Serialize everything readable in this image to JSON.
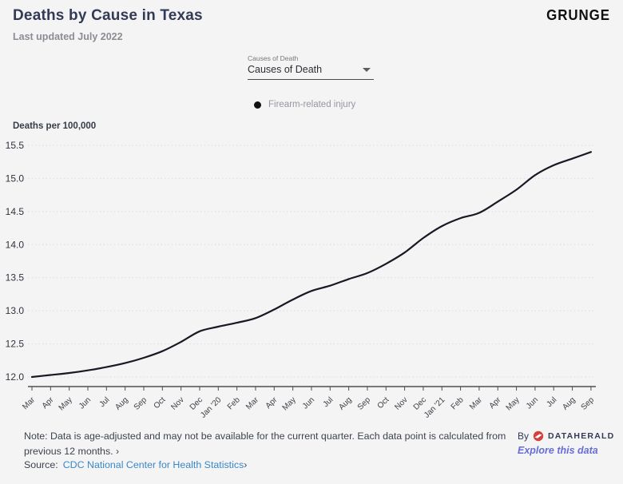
{
  "header": {
    "title": "Deaths by Cause in Texas",
    "subtitle": "Last updated July 2022",
    "brand": "GRUNGE"
  },
  "controls": {
    "dropdown_label": "Causes of Death",
    "dropdown_value": "Causes of Death"
  },
  "legend": {
    "series_label": "Firearm-related injury",
    "dot_color": "#111111"
  },
  "chart_data": {
    "type": "line",
    "title": "Deaths by Cause in Texas",
    "xlabel": "",
    "ylabel": "Deaths per 100,000",
    "x": [
      "Mar",
      "Apr",
      "May",
      "Jun",
      "Jul",
      "Aug",
      "Sep",
      "Oct",
      "Nov",
      "Dec",
      "Jan '20",
      "Feb",
      "Mar",
      "Apr",
      "May",
      "Jun",
      "Jul",
      "Aug",
      "Sep",
      "Oct",
      "Nov",
      "Dec",
      "Jan '21",
      "Feb",
      "Mar",
      "Apr",
      "May",
      "Jun",
      "Jul",
      "Aug",
      "Sep"
    ],
    "series": [
      {
        "name": "Firearm-related injury",
        "values": [
          12.0,
          12.03,
          12.06,
          12.1,
          12.15,
          12.21,
          12.29,
          12.39,
          12.53,
          12.69,
          12.76,
          12.82,
          12.89,
          13.02,
          13.17,
          13.3,
          13.38,
          13.48,
          13.57,
          13.71,
          13.88,
          14.1,
          14.28,
          14.4,
          14.48,
          14.65,
          14.83,
          15.05,
          15.2,
          15.3,
          15.4
        ]
      }
    ],
    "ylim": [
      12.0,
      15.5
    ],
    "yticks": [
      12.0,
      12.5,
      13.0,
      13.5,
      14.0,
      14.5,
      15.0,
      15.5
    ],
    "grid": "horizontal-dotted",
    "legend_position": "top-center",
    "line_color": "#171923",
    "grid_color": "#dcdce2",
    "axis_color": "#4e4e52"
  },
  "footer": {
    "note_text": "Note: Data is age-adjusted and may not be available for the current quarter. Each data point is calculated from previous 12 months.",
    "note_chevron": "›",
    "source_label": "Source:",
    "source_link": "CDC National Center for Health Statistics",
    "source_chevron": "›",
    "by_label": "By",
    "by_brand": "DATAHERALD",
    "explore_link": "Explore this data",
    "dataherald_red": "#d2413e"
  }
}
